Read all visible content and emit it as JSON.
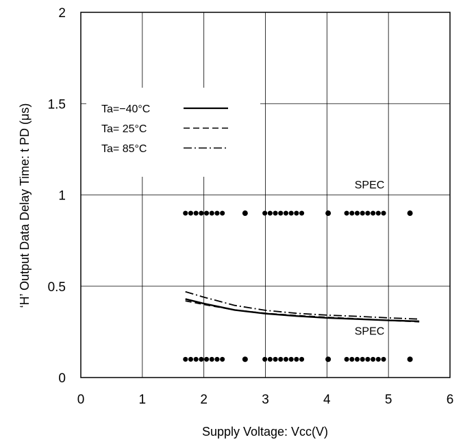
{
  "chart_data": {
    "type": "line",
    "xlabel": "Supply Voltage: Vcc(V)",
    "ylabel": "‘H’ Output Data Delay Time: t  PD (μs)",
    "xlim": [
      0,
      6
    ],
    "ylim": [
      0,
      2
    ],
    "xticks": [
      "0",
      "1",
      "2",
      "3",
      "4",
      "5",
      "6"
    ],
    "yticks": [
      "0",
      "0.5",
      "1",
      "1.5",
      "2"
    ],
    "grid": true,
    "legend_position": "top-left",
    "series": [
      {
        "name": "Ta=−40°C",
        "style": "solid",
        "x": [
          1.7,
          2.0,
          2.5,
          3.0,
          3.5,
          4.0,
          4.5,
          5.0,
          5.5
        ],
        "y": [
          0.43,
          0.405,
          0.37,
          0.35,
          0.337,
          0.327,
          0.32,
          0.313,
          0.308
        ]
      },
      {
        "name": "Ta= 25°C",
        "style": "dashed",
        "x": [
          1.7,
          2.0,
          2.5,
          3.0,
          3.5,
          4.0,
          4.5,
          5.0,
          5.5
        ],
        "y": [
          0.42,
          0.4,
          0.37,
          0.352,
          0.34,
          0.33,
          0.322,
          0.313,
          0.305
        ]
      },
      {
        "name": "Ta= 85°C",
        "style": "dashdot",
        "x": [
          1.7,
          2.0,
          2.5,
          3.0,
          3.5,
          4.0,
          4.5,
          5.0,
          5.5
        ],
        "y": [
          0.47,
          0.44,
          0.395,
          0.368,
          0.352,
          0.342,
          0.335,
          0.327,
          0.32
        ]
      }
    ],
    "spec_lines": [
      {
        "label": "SPEC",
        "y": 0.9,
        "x_range": [
          1.7,
          5.4
        ]
      },
      {
        "label": "SPEC",
        "y": 0.1,
        "x_range": [
          1.7,
          5.4
        ]
      }
    ]
  }
}
